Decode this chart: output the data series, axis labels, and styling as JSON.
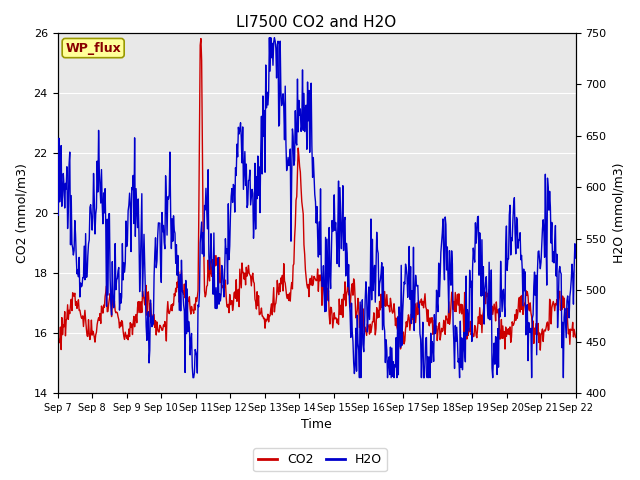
{
  "title": "LI7500 CO2 and H2O",
  "xlabel": "Time",
  "ylabel_left": "CO2 (mmol/m3)",
  "ylabel_right": "H2O (mmol/m3)",
  "site_label": "WP_flux",
  "co2_ylim": [
    14,
    26
  ],
  "h2o_ylim": [
    400,
    750
  ],
  "co2_yticks": [
    14,
    16,
    18,
    20,
    22,
    24,
    26
  ],
  "h2o_yticks": [
    400,
    450,
    500,
    550,
    600,
    650,
    700,
    750
  ],
  "x_tick_labels": [
    "Sep 7",
    "Sep 8",
    "Sep 9",
    "Sep 10",
    "Sep 11",
    "Sep 12",
    "Sep 13",
    "Sep 14",
    "Sep 15",
    "Sep 16",
    "Sep 17",
    "Sep 18",
    "Sep 19",
    "Sep 20",
    "Sep 21",
    "Sep 22"
  ],
  "co2_color": "#CC0000",
  "h2o_color": "#0000CC",
  "background_color": "#E8E8E8",
  "legend_co2_label": "CO2",
  "legend_h2o_label": "H2O",
  "title_fontsize": 11,
  "axis_label_fontsize": 9,
  "tick_fontsize": 8,
  "linewidth": 1.0
}
